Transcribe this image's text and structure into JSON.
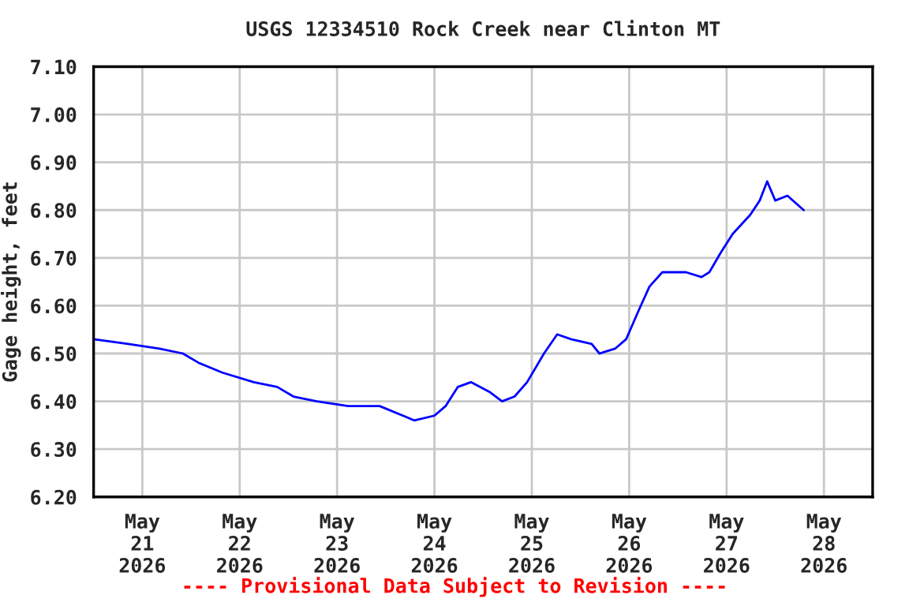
{
  "chart_data": {
    "type": "line",
    "title": "USGS 12334510 Rock Creek near Clinton MT",
    "ylabel": "Gage height, feet",
    "annotations": [
      "---- Provisional Data Subject to Revision ----"
    ],
    "x": [
      "2026-05-20T12:00",
      "2026-05-20T20:30",
      "2026-05-21T04:15",
      "2026-05-21T10:00",
      "2026-05-21T14:00",
      "2026-05-21T19:45",
      "2026-05-22T03:30",
      "2026-05-22T09:15",
      "2026-05-22T13:15",
      "2026-05-22T19:00",
      "2026-05-23T02:45",
      "2026-05-23T10:30",
      "2026-05-23T16:15",
      "2026-05-23T19:00",
      "2026-05-24T00:00",
      "2026-05-24T02:45",
      "2026-05-24T05:45",
      "2026-05-24T09:00",
      "2026-05-24T13:30",
      "2026-05-24T16:40",
      "2026-05-24T19:45",
      "2026-05-24T22:50",
      "2026-05-25T03:00",
      "2026-05-25T06:15",
      "2026-05-25T09:40",
      "2026-05-25T14:45",
      "2026-05-25T16:40",
      "2026-05-25T20:30",
      "2026-05-25T23:15",
      "2026-05-26T02:20",
      "2026-05-26T05:00",
      "2026-05-26T08:10",
      "2026-05-26T14:00",
      "2026-05-26T17:50",
      "2026-05-26T19:45",
      "2026-05-26T22:30",
      "2026-05-27T01:30",
      "2026-05-27T05:50",
      "2026-05-27T08:10",
      "2026-05-27T10:00",
      "2026-05-27T12:00",
      "2026-05-27T15:00",
      "2026-05-27T19:00"
    ],
    "series": [
      {
        "color": "#0000ff",
        "values": [
          6.53,
          6.52,
          6.51,
          6.5,
          6.48,
          6.46,
          6.44,
          6.43,
          6.41,
          6.4,
          6.39,
          6.39,
          6.37,
          6.36,
          6.37,
          6.39,
          6.43,
          6.44,
          6.42,
          6.4,
          6.41,
          6.44,
          6.5,
          6.54,
          6.53,
          6.52,
          6.5,
          6.51,
          6.53,
          6.59,
          6.64,
          6.67,
          6.67,
          6.66,
          6.67,
          6.71,
          6.75,
          6.79,
          6.82,
          6.86,
          6.82,
          6.83,
          6.8
        ]
      }
    ],
    "xlim": [
      "2026-05-20T12:00",
      "2026-05-28T12:00"
    ],
    "xticks": [
      {
        "value": "2026-05-21",
        "label": "May\n21\n2026"
      },
      {
        "value": "2026-05-22",
        "label": "May\n22\n2026"
      },
      {
        "value": "2026-05-23",
        "label": "May\n23\n2026"
      },
      {
        "value": "2026-05-24",
        "label": "May\n24\n2026"
      },
      {
        "value": "2026-05-25",
        "label": "May\n25\n2026"
      },
      {
        "value": "2026-05-26",
        "label": "May\n26\n2026"
      },
      {
        "value": "2026-05-27",
        "label": "May\n27\n2026"
      },
      {
        "value": "2026-05-28",
        "label": "May\n28\n2026"
      }
    ],
    "ylim": [
      6.2,
      7.1
    ],
    "yticks": [
      {
        "value": 6.2,
        "label": "6.20"
      },
      {
        "value": 6.3,
        "label": "6.30"
      },
      {
        "value": 6.4,
        "label": "6.40"
      },
      {
        "value": 6.5,
        "label": "6.50"
      },
      {
        "value": 6.6,
        "label": "6.60"
      },
      {
        "value": 6.7,
        "label": "6.70"
      },
      {
        "value": 6.8,
        "label": "6.80"
      },
      {
        "value": 6.9,
        "label": "6.90"
      },
      {
        "value": 7.0,
        "label": "7.00"
      },
      {
        "value": 7.1,
        "label": "7.10"
      }
    ],
    "grid": true,
    "marker": "none",
    "line_style": "solid",
    "legend": false
  }
}
